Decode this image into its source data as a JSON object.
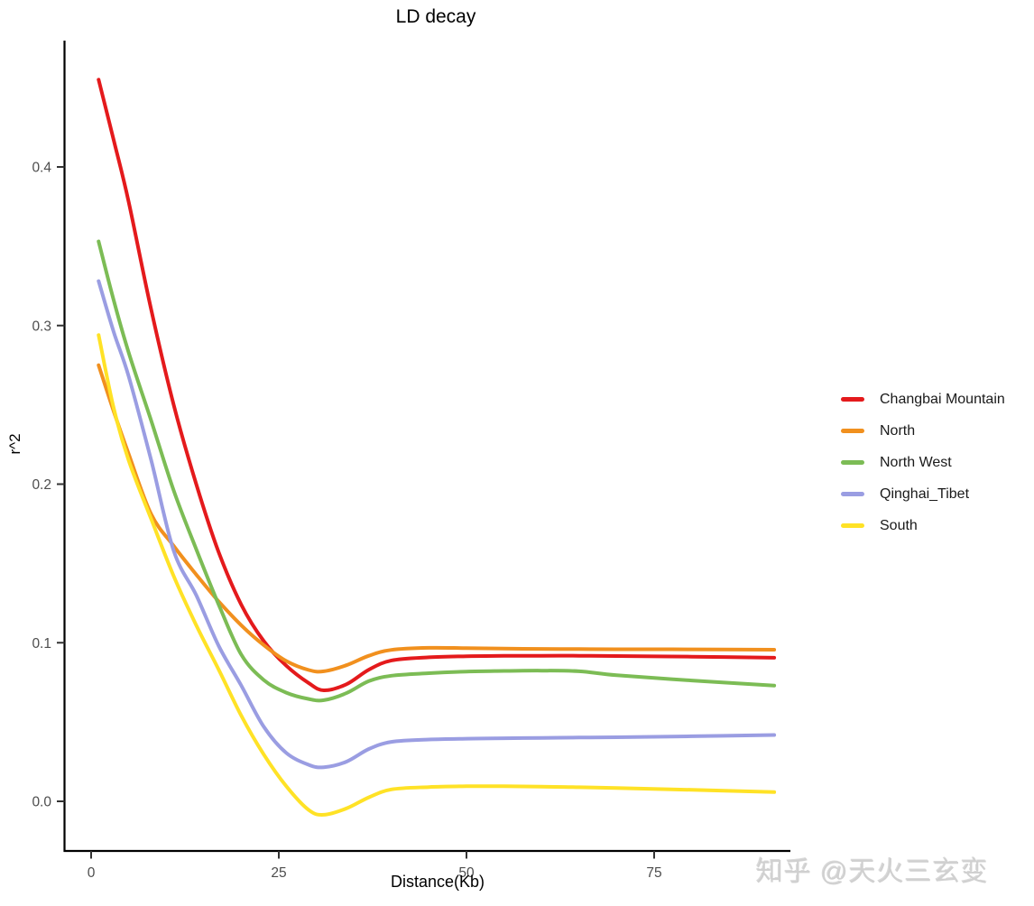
{
  "style": {
    "background": "#ffffff",
    "axis_color": "#000000",
    "tick_color": "#333333",
    "tick_text_color": "#4d4d4d",
    "watermark_color": "#d0d0d0"
  },
  "watermark": {
    "text": "知乎 @天火三玄变"
  },
  "chart_data": {
    "type": "line",
    "title": "LD decay",
    "xlabel": "Distance(Kb)",
    "ylabel": "r^2",
    "grid": false,
    "legend_position": "right",
    "xlim": [
      -3.6,
      93.2
    ],
    "ylim": [
      -0.033,
      0.48
    ],
    "x_ticks": [
      {
        "label": "0",
        "value": 0
      },
      {
        "label": "25",
        "value": 25
      },
      {
        "label": "50",
        "value": 50
      },
      {
        "label": "75",
        "value": 75
      }
    ],
    "y_ticks": [
      {
        "label": "0.0",
        "value": 0.0
      },
      {
        "label": "0.1",
        "value": 0.1
      },
      {
        "label": "0.2",
        "value": 0.2
      },
      {
        "label": "0.3",
        "value": 0.3
      },
      {
        "label": "0.4",
        "value": 0.4
      }
    ],
    "x": [
      1,
      3,
      5,
      8,
      11,
      14,
      17,
      20,
      23,
      26,
      29,
      31,
      34,
      37,
      40,
      45,
      50,
      55,
      60,
      65,
      70,
      80,
      91
    ],
    "series": [
      {
        "name": "Changbai Mountain",
        "color": "#E41A1C",
        "values": [
          0.455,
          0.417,
          0.378,
          0.31,
          0.25,
          0.2,
          0.157,
          0.124,
          0.101,
          0.0855,
          0.0745,
          0.07,
          0.0738,
          0.083,
          0.0888,
          0.0908,
          0.0915,
          0.0917,
          0.0918,
          0.0918,
          0.0916,
          0.0912,
          0.0905
        ]
      },
      {
        "name": "North",
        "color": "#F1901E",
        "values": [
          0.275,
          0.246,
          0.219,
          0.181,
          0.161,
          0.143,
          0.126,
          0.111,
          0.0985,
          0.0885,
          0.0828,
          0.082,
          0.0858,
          0.0918,
          0.0955,
          0.0968,
          0.0966,
          0.0963,
          0.0961,
          0.096,
          0.0959,
          0.0958,
          0.0956
        ]
      },
      {
        "name": "North West",
        "color": "#7CBC55",
        "values": [
          0.353,
          0.316,
          0.283,
          0.24,
          0.196,
          0.159,
          0.124,
          0.0925,
          0.0765,
          0.0685,
          0.0645,
          0.0638,
          0.0682,
          0.0758,
          0.0792,
          0.0808,
          0.0818,
          0.0822,
          0.0824,
          0.082,
          0.0795,
          0.0762,
          0.073
        ]
      },
      {
        "name": "Qinghai_Tibet",
        "color": "#9A9DE2",
        "values": [
          0.328,
          0.296,
          0.268,
          0.215,
          0.158,
          0.13,
          0.098,
          0.073,
          0.047,
          0.0305,
          0.023,
          0.0215,
          0.025,
          0.033,
          0.0375,
          0.039,
          0.0395,
          0.0398,
          0.04,
          0.0402,
          0.0404,
          0.041,
          0.0418
        ]
      },
      {
        "name": "South",
        "color": "#FFE226",
        "values": [
          0.294,
          0.248,
          0.215,
          0.178,
          0.142,
          0.111,
          0.083,
          0.054,
          0.0295,
          0.0095,
          -0.0055,
          -0.0085,
          -0.0045,
          0.0025,
          0.0075,
          0.009,
          0.0095,
          0.0095,
          0.0093,
          0.0089,
          0.0084,
          0.0072,
          0.0058
        ]
      }
    ]
  }
}
